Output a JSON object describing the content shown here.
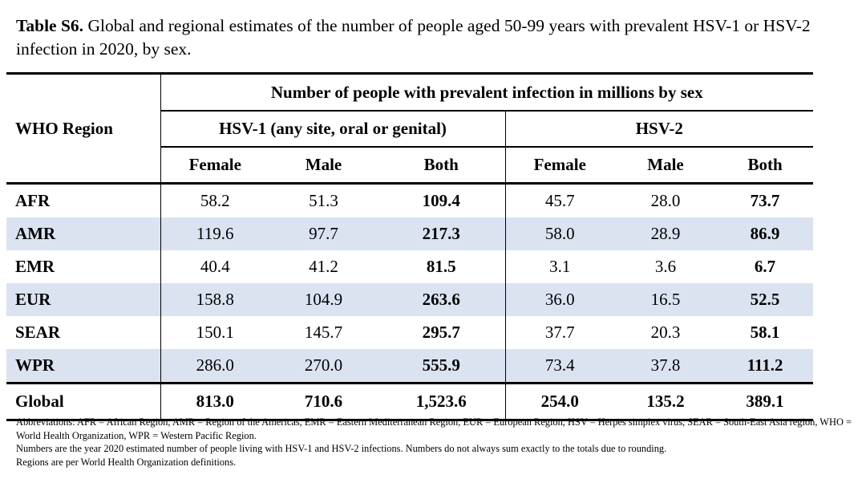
{
  "caption": {
    "label": "Table S6.",
    "text": " Global and regional estimates of the number of people aged 50-99 years with prevalent HSV-1 or HSV-2 infection in 2020, by sex."
  },
  "table": {
    "region_header": "WHO Region",
    "span_header": "Number of people with prevalent infection in millions by sex",
    "group1": "HSV-1 (any site, oral or genital)",
    "group2": "HSV-2",
    "sub": [
      "Female",
      "Male",
      "Both",
      "Female",
      "Male",
      "Both"
    ],
    "rows": [
      {
        "region": "AFR",
        "v": [
          "58.2",
          "51.3",
          "109.4",
          "45.7",
          "28.0",
          "73.7"
        ]
      },
      {
        "region": "AMR",
        "v": [
          "119.6",
          "97.7",
          "217.3",
          "58.0",
          "28.9",
          "86.9"
        ]
      },
      {
        "region": "EMR",
        "v": [
          "40.4",
          "41.2",
          "81.5",
          "3.1",
          "3.6",
          "6.7"
        ]
      },
      {
        "region": "EUR",
        "v": [
          "158.8",
          "104.9",
          "263.6",
          "36.0",
          "16.5",
          "52.5"
        ]
      },
      {
        "region": "SEAR",
        "v": [
          "150.1",
          "145.7",
          "295.7",
          "37.7",
          "20.3",
          "58.1"
        ]
      },
      {
        "region": "WPR",
        "v": [
          "286.0",
          "270.0",
          "555.9",
          "73.4",
          "37.8",
          "111.2"
        ]
      }
    ],
    "global": {
      "region": "Global",
      "v": [
        "813.0",
        "710.6",
        "1,523.6",
        "254.0",
        "135.2",
        "389.1"
      ]
    }
  },
  "notes": [
    "Abbreviations: AFR = African Region, AMR = Region of the Americas, EMR = Eastern Mediterranean Region, EUR = European Region, HSV = Herpes simplex virus, SEAR = South-East Asia region, WHO = World Health Organization, WPR = Western Pacific Region.",
    "Numbers are the year 2020 estimated number of people living with HSV-1 and HSV-2 infections. Numbers do not always sum exactly to the totals due to rounding.",
    "Regions are per World Health Organization definitions."
  ],
  "colors": {
    "band": "#dbe3f1",
    "rule": "#000000"
  }
}
